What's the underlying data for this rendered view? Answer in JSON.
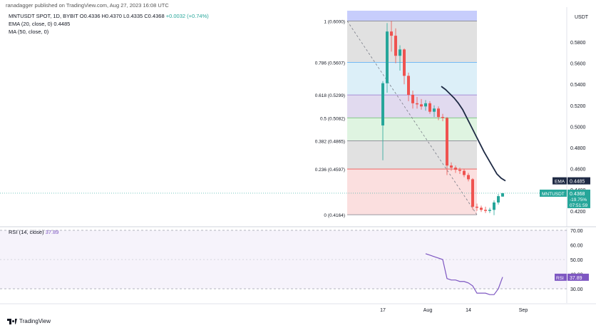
{
  "header": {
    "publish_line": "ranadagger published on TradingView.com, Aug 27, 2023 16:08 UTC"
  },
  "legend": {
    "symbol_line": "MNTUSDT SPOT, 1D, BYBIT",
    "ohlc": "O0.4336 H0.4370 L0.4335 C0.4368",
    "change": "+0.0032 (+0.74%)",
    "ema": "EMA (20, close, 0)",
    "ema_value": "0.4485",
    "ma": "MA (50, close, 0)"
  },
  "price_axis": {
    "currency": "USDT",
    "ticks": [
      "0.5800",
      "0.5600",
      "0.5400",
      "0.5200",
      "0.5000",
      "0.4800",
      "0.4600",
      "0.4400",
      "0.4200"
    ],
    "ema_badge_label": "EMA",
    "ema_badge_value": "0.4485",
    "price_badge_label": "MNTUSDT",
    "price_badge_value": "0.4368",
    "price_badge_pct": "-19.75%",
    "price_badge_timer": "07:51:59"
  },
  "fib_levels": [
    {
      "label": "1 (0.6000)"
    },
    {
      "label": "0.786 (0.5607)"
    },
    {
      "label": "0.618 (0.5299)"
    },
    {
      "label": "0.5 (0.5082)"
    },
    {
      "label": "0.382 (0.4865)"
    },
    {
      "label": "0.236 (0.4597)"
    },
    {
      "label": "0 (0.4164)"
    }
  ],
  "rsi": {
    "title": "RSI (14, close)",
    "value": "37.89",
    "badge_label": "RSI",
    "badge_value": "37.89",
    "ticks": [
      "70.00",
      "60.00",
      "50.00",
      "40.00",
      "30.00"
    ]
  },
  "time_axis": {
    "labels": [
      "17",
      "Aug",
      "14",
      "Sep"
    ]
  },
  "branding": {
    "logo_text": "TradingView"
  },
  "colors": {
    "up": "#26a69a",
    "down": "#ef5350",
    "ema": "#1e2a44",
    "rsi": "#7e57c2",
    "ema_badge": "#1f2a44",
    "price_badge": "#26a69a"
  },
  "chart_data": {
    "type": "candlestick",
    "ylim": [
      0.405,
      0.61
    ],
    "candles": [
      {
        "o": 0.501,
        "h": 0.543,
        "l": 0.468,
        "c": 0.541
      },
      {
        "o": 0.541,
        "h": 0.598,
        "l": 0.532,
        "c": 0.59
      },
      {
        "o": 0.59,
        "h": 0.6,
        "l": 0.571,
        "c": 0.586
      },
      {
        "o": 0.586,
        "h": 0.593,
        "l": 0.56,
        "c": 0.567
      },
      {
        "o": 0.567,
        "h": 0.577,
        "l": 0.553,
        "c": 0.573
      },
      {
        "o": 0.573,
        "h": 0.574,
        "l": 0.54,
        "c": 0.548
      },
      {
        "o": 0.548,
        "h": 0.551,
        "l": 0.524,
        "c": 0.53
      },
      {
        "o": 0.53,
        "h": 0.534,
        "l": 0.517,
        "c": 0.522
      },
      {
        "o": 0.522,
        "h": 0.528,
        "l": 0.517,
        "c": 0.521
      },
      {
        "o": 0.521,
        "h": 0.526,
        "l": 0.516,
        "c": 0.519
      },
      {
        "o": 0.519,
        "h": 0.525,
        "l": 0.515,
        "c": 0.522
      },
      {
        "o": 0.522,
        "h": 0.524,
        "l": 0.512,
        "c": 0.514
      },
      {
        "o": 0.514,
        "h": 0.52,
        "l": 0.509,
        "c": 0.517
      },
      {
        "o": 0.517,
        "h": 0.519,
        "l": 0.506,
        "c": 0.509
      },
      {
        "o": 0.509,
        "h": 0.512,
        "l": 0.505,
        "c": 0.508
      },
      {
        "o": 0.508,
        "h": 0.509,
        "l": 0.454,
        "c": 0.463
      },
      {
        "o": 0.463,
        "h": 0.466,
        "l": 0.458,
        "c": 0.461
      },
      {
        "o": 0.461,
        "h": 0.463,
        "l": 0.456,
        "c": 0.459
      },
      {
        "o": 0.459,
        "h": 0.461,
        "l": 0.455,
        "c": 0.458
      },
      {
        "o": 0.458,
        "h": 0.46,
        "l": 0.452,
        "c": 0.454
      },
      {
        "o": 0.454,
        "h": 0.456,
        "l": 0.448,
        "c": 0.45
      },
      {
        "o": 0.45,
        "h": 0.451,
        "l": 0.421,
        "c": 0.424
      },
      {
        "o": 0.424,
        "h": 0.427,
        "l": 0.42,
        "c": 0.423
      },
      {
        "o": 0.423,
        "h": 0.425,
        "l": 0.419,
        "c": 0.421
      },
      {
        "o": 0.421,
        "h": 0.424,
        "l": 0.418,
        "c": 0.42
      },
      {
        "o": 0.42,
        "h": 0.423,
        "l": 0.418,
        "c": 0.421
      },
      {
        "o": 0.421,
        "h": 0.43,
        "l": 0.416,
        "c": 0.428
      },
      {
        "o": 0.428,
        "h": 0.436,
        "l": 0.426,
        "c": 0.434
      },
      {
        "o": 0.4336,
        "h": 0.437,
        "l": 0.4335,
        "c": 0.4368
      }
    ],
    "ema20": [
      0.538,
      0.535,
      0.531,
      0.527,
      0.522,
      0.516,
      0.508,
      0.5,
      0.492,
      0.484,
      0.476,
      0.469,
      0.462,
      0.455,
      0.451,
      0.4485
    ],
    "rsi_values": [
      54,
      53,
      52,
      51,
      50,
      37,
      36,
      36,
      35,
      35,
      34,
      32,
      27,
      27,
      27,
      26,
      26,
      30,
      38
    ]
  }
}
